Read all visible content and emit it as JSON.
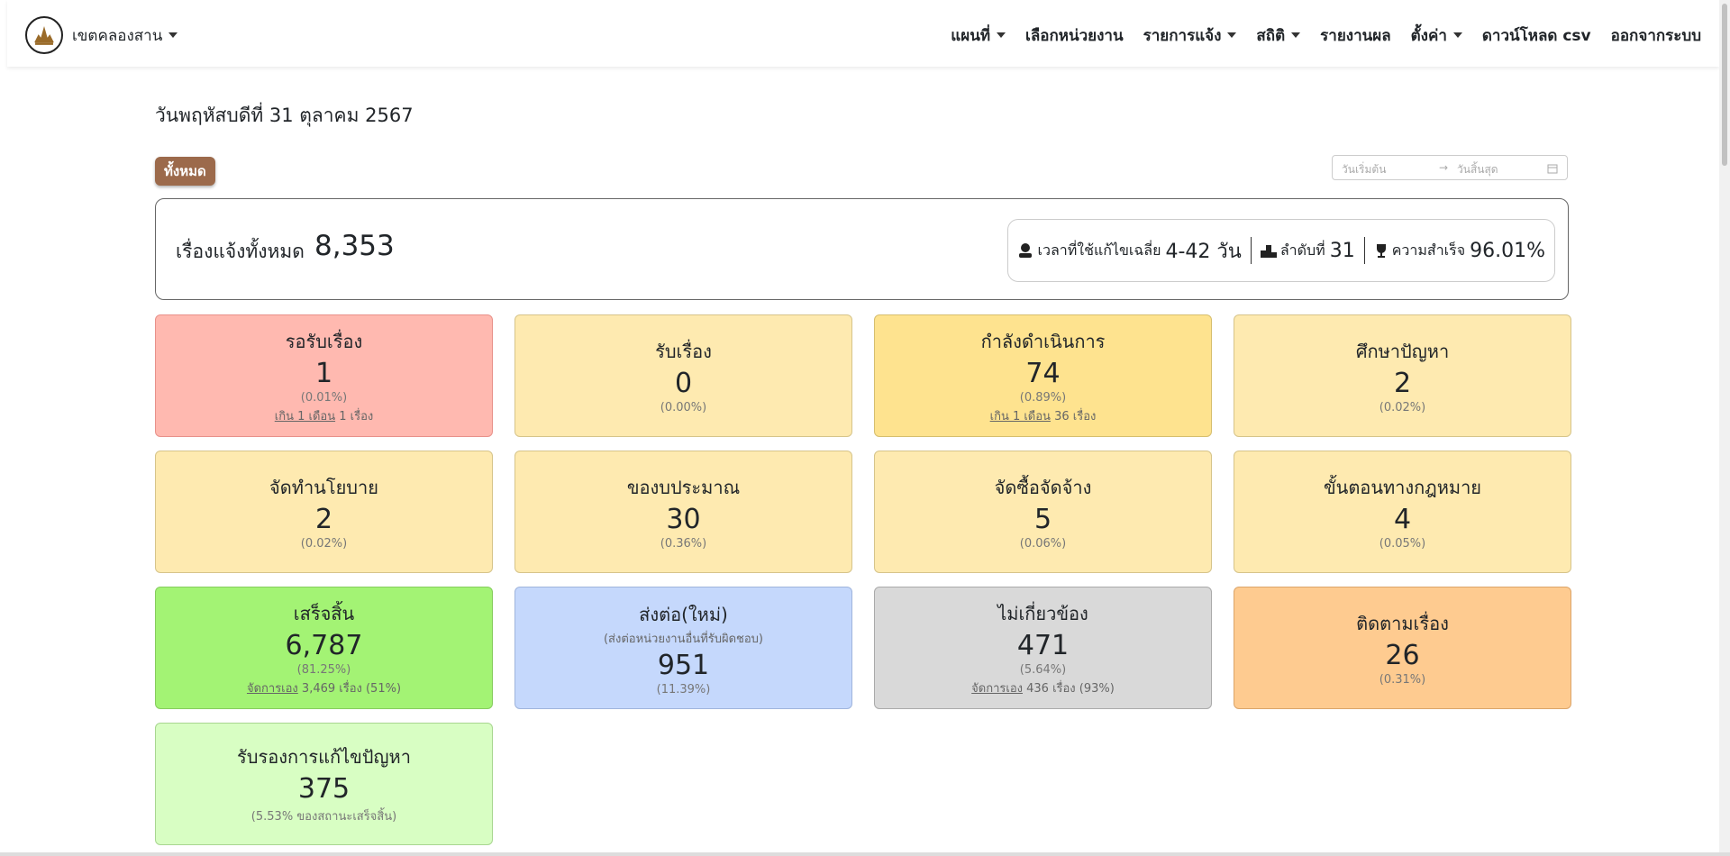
{
  "nav": {
    "brand": "เขตคลองสาน",
    "items": [
      "แผนที่",
      "เลือกหน่วยงาน",
      "รายการแจ้ง",
      "สถิติ",
      "รายงานผล",
      "ตั้งค่า",
      "ดาวน์โหลด csv",
      "ออกจากระบบ"
    ],
    "dropdown": [
      true,
      false,
      true,
      true,
      false,
      true,
      false,
      false
    ]
  },
  "date": "วันพฤหัสบดีที่ 31 ตุลาคม 2567",
  "filter": "ทั้งหมด",
  "date_range": {
    "start": "วันเริ่มต้น",
    "end": "วันสิ้นสุด"
  },
  "summary": {
    "label": "เรื่องแจ้งทั้งหมด",
    "value": "8,353",
    "stats": [
      {
        "label": "เวลาที่ใช้แก้ไขเฉลี่ย",
        "value": "4-42 วัน"
      },
      {
        "label": "ลำดับที่",
        "value": "31"
      },
      {
        "label": "ความสำเร็จ",
        "value": "96.01%"
      }
    ]
  },
  "cards": [
    {
      "title": "รอรับเรื่อง",
      "value": "1",
      "percent": "(0.01%)",
      "note": {
        "link": "เกิน 1 เดือน",
        "text": "1 เรื่อง"
      },
      "color": "#ffb9b0",
      "border": "#e8918a"
    },
    {
      "title": "รับเรื่อง",
      "value": "0",
      "percent": "(0.00%)",
      "color": "#feeab0",
      "border": "#d6c48a"
    },
    {
      "title": "กำลังดำเนินการ",
      "value": "74",
      "percent": "(0.89%)",
      "note": {
        "link": "เกิน 1 เดือน",
        "text": "36 เรื่อง"
      },
      "color": "#fee38f",
      "border": "#d6be6e"
    },
    {
      "title": "ศึกษาปัญหา",
      "value": "2",
      "percent": "(0.02%)",
      "color": "#feeab0",
      "border": "#d6c48a"
    },
    {
      "title": "จัดทำนโยบาย",
      "value": "2",
      "percent": "(0.02%)",
      "color": "#feeab0",
      "border": "#d6c48a"
    },
    {
      "title": "ของบประมาณ",
      "value": "30",
      "percent": "(0.36%)",
      "color": "#feeab0",
      "border": "#d6c48a"
    },
    {
      "title": "จัดซื้อจัดจ้าง",
      "value": "5",
      "percent": "(0.06%)",
      "color": "#feeab0",
      "border": "#d6c48a"
    },
    {
      "title": "ขั้นตอนทางกฎหมาย",
      "value": "4",
      "percent": "(0.05%)",
      "color": "#feeab0",
      "border": "#d6c48a"
    },
    {
      "title": "เสร็จสิ้น",
      "value": "6,787",
      "percent": "(81.25%)",
      "note": {
        "link": "จัดการเอง",
        "text": "3,469 เรื่อง (51%)"
      },
      "color": "#a3f374",
      "border": "#86cc5e"
    },
    {
      "title": "ส่งต่อ(ใหม่)",
      "subtitle": "(ส่งต่อหน่วยงานอื่นที่รับผิดชอบ)",
      "value": "951",
      "percent": "(11.39%)",
      "color": "#c5d8fc",
      "border": "#9fb4dc"
    },
    {
      "title": "ไม่เกี่ยวข้อง",
      "value": "471",
      "percent": "(5.64%)",
      "note": {
        "link": "จัดการเอง",
        "text": "436 เรื่อง (93%)"
      },
      "color": "#d9d9d9",
      "border": "#aaaaaa"
    },
    {
      "title": "ติดตามเรื่อง",
      "value": "26",
      "percent": "(0.31%)",
      "color": "#fecb90",
      "border": "#dba56a"
    },
    {
      "title": "รับรองการแก้ไขปัญหา",
      "value": "375",
      "percent": "(5.53% ของสถานะเสร็จสิ้น)",
      "color": "#d8fec3",
      "border": "#a8d690"
    }
  ]
}
